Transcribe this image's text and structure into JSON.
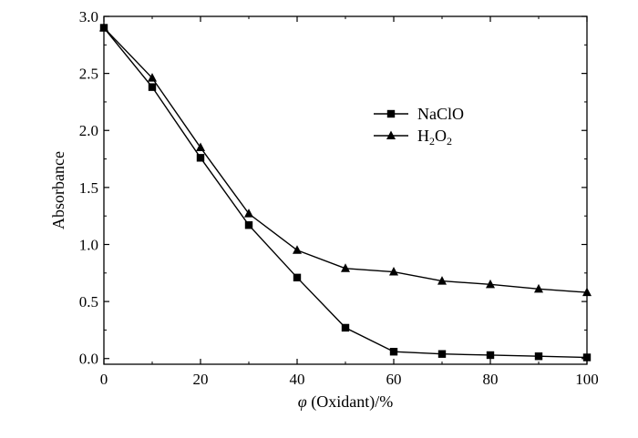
{
  "chart_data": {
    "type": "line",
    "title": "",
    "xlabel": {
      "italic": "φ",
      "rest": " (Oxidant)/%"
    },
    "ylabel": "Absorbance",
    "xlim": [
      0,
      100
    ],
    "ylim": [
      -0.05,
      3.0
    ],
    "xticks": [
      0,
      20,
      40,
      60,
      80,
      100
    ],
    "yticks": [
      0.0,
      0.5,
      1.0,
      1.5,
      2.0,
      2.5,
      3.0
    ],
    "ytick_labels": [
      "0.0",
      "0.5",
      "1.0",
      "1.5",
      "2.0",
      "2.5",
      "3.0"
    ],
    "x": [
      0,
      10,
      20,
      30,
      40,
      50,
      60,
      70,
      80,
      90,
      100
    ],
    "series": [
      {
        "name": "NaClO",
        "marker": "square",
        "values": [
          2.9,
          2.38,
          1.76,
          1.17,
          0.71,
          0.27,
          0.06,
          0.04,
          0.03,
          0.02,
          0.01
        ]
      },
      {
        "name": "H2O2",
        "label_parts": [
          "H",
          "2",
          "O",
          "2"
        ],
        "marker": "triangle",
        "values": [
          2.9,
          2.46,
          1.85,
          1.27,
          0.95,
          0.79,
          0.76,
          0.68,
          0.65,
          0.61,
          0.58
        ]
      }
    ],
    "grid": false,
    "legend": "upper-right",
    "color": "#000000"
  }
}
